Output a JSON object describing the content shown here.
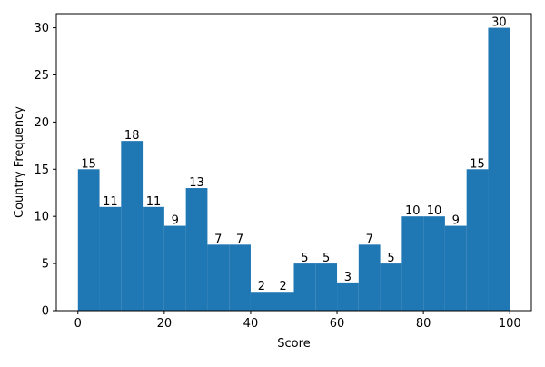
{
  "chart_data": {
    "type": "bar",
    "subtype": "histogram",
    "title": "",
    "xlabel": "Score",
    "ylabel": "Country Frequency",
    "bin_edges": [
      0,
      5,
      10,
      15,
      20,
      25,
      30,
      35,
      40,
      45,
      50,
      55,
      60,
      65,
      70,
      75,
      80,
      85,
      90,
      95,
      100
    ],
    "values": [
      15,
      11,
      18,
      11,
      9,
      13,
      7,
      7,
      2,
      2,
      5,
      5,
      3,
      7,
      5,
      10,
      10,
      9,
      15,
      30
    ],
    "value_labels": [
      "15",
      "11",
      "18",
      "11",
      "9",
      "13",
      "7",
      "7",
      "2",
      "2",
      "5",
      "5",
      "3",
      "7",
      "5",
      "10",
      "10",
      "9",
      "15",
      "30"
    ],
    "xlim": [
      -5,
      105
    ],
    "ylim": [
      0,
      31.5
    ],
    "xticks": [
      0,
      20,
      40,
      60,
      80,
      100
    ],
    "xtick_labels": [
      "0",
      "20",
      "40",
      "60",
      "80",
      "100"
    ],
    "yticks": [
      0,
      5,
      10,
      15,
      20,
      25,
      30
    ],
    "ytick_labels": [
      "0",
      "5",
      "10",
      "15",
      "20",
      "25",
      "30"
    ],
    "bar_color": "#1f77b4",
    "grid": false,
    "legend": "none"
  }
}
